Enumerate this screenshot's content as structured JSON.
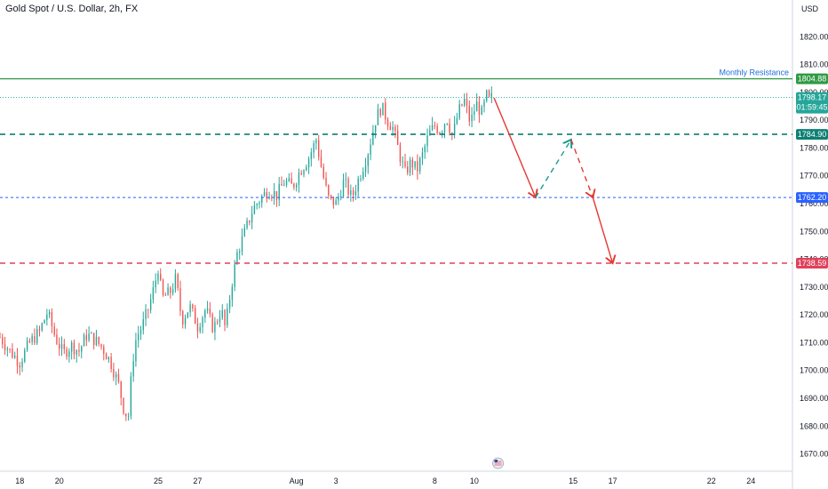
{
  "header": {
    "title": "Gold Spot / U.S. Dollar, 2h, FX",
    "currency": "USD"
  },
  "colors": {
    "up": "#26a69a",
    "down": "#ef5350",
    "resistance": "#2e9a43",
    "support_teal": "#0e7f75",
    "support_blue": "#2962ff",
    "support_red": "#e0415a",
    "arrow_red": "#e53935",
    "arrow_teal": "#1a9a8a"
  },
  "chart_data": {
    "type": "candlestick",
    "title": "Gold Spot / U.S. Dollar, 2h, FX",
    "ylabel": "USD",
    "ylim": [
      1667,
      1830
    ],
    "y_ticks": [
      1670,
      1680,
      1690,
      1700,
      1710,
      1720,
      1730,
      1740,
      1750,
      1760,
      1770,
      1780,
      1790,
      1800,
      1810,
      1820
    ],
    "x_ticks": [
      {
        "label": "18",
        "day": 18
      },
      {
        "label": "20",
        "day": 20
      },
      {
        "label": "25",
        "day": 25
      },
      {
        "label": "27",
        "day": 27
      },
      {
        "label": "Aug",
        "day": 32
      },
      {
        "label": "3",
        "day": 34
      },
      {
        "label": "8",
        "day": 39
      },
      {
        "label": "10",
        "day": 41
      },
      {
        "label": "15",
        "day": 46
      },
      {
        "label": "17",
        "day": 48
      },
      {
        "label": "22",
        "day": 53
      },
      {
        "label": "24",
        "day": 55
      }
    ],
    "x_range_days": [
      17,
      57.1
    ],
    "price_path": [
      [
        17.0,
        1712
      ],
      [
        17.5,
        1707
      ],
      [
        18.0,
        1703
      ],
      [
        18.5,
        1710
      ],
      [
        19.0,
        1714
      ],
      [
        19.4,
        1721
      ],
      [
        19.8,
        1712
      ],
      [
        20.2,
        1706
      ],
      [
        20.6,
        1709
      ],
      [
        21.0,
        1707
      ],
      [
        21.4,
        1713
      ],
      [
        21.8,
        1711
      ],
      [
        22.2,
        1708
      ],
      [
        22.6,
        1703
      ],
      [
        23.0,
        1695
      ],
      [
        23.3,
        1685
      ],
      [
        23.5,
        1684
      ],
      [
        23.7,
        1703
      ],
      [
        23.9,
        1712
      ],
      [
        24.2,
        1716
      ],
      [
        24.5,
        1722
      ],
      [
        24.8,
        1730
      ],
      [
        25.0,
        1737
      ],
      [
        25.2,
        1726
      ],
      [
        25.6,
        1728
      ],
      [
        25.9,
        1733
      ],
      [
        26.2,
        1718
      ],
      [
        26.6,
        1723
      ],
      [
        27.0,
        1716
      ],
      [
        27.4,
        1722
      ],
      [
        27.8,
        1715
      ],
      [
        28.2,
        1722
      ],
      [
        28.4,
        1715
      ],
      [
        28.7,
        1730
      ],
      [
        29.0,
        1742
      ],
      [
        29.4,
        1750
      ],
      [
        29.8,
        1758
      ],
      [
        30.2,
        1762
      ],
      [
        30.6,
        1765
      ],
      [
        31.0,
        1763
      ],
      [
        31.4,
        1768
      ],
      [
        31.8,
        1766
      ],
      [
        32.2,
        1772
      ],
      [
        32.6,
        1776
      ],
      [
        33.0,
        1783
      ],
      [
        33.2,
        1775
      ],
      [
        33.6,
        1762
      ],
      [
        34.0,
        1760
      ],
      [
        34.4,
        1768
      ],
      [
        34.8,
        1762
      ],
      [
        35.2,
        1770
      ],
      [
        35.6,
        1778
      ],
      [
        36.0,
        1790
      ],
      [
        36.3,
        1795
      ],
      [
        36.6,
        1790
      ],
      [
        36.9,
        1787
      ],
      [
        37.2,
        1778
      ],
      [
        37.5,
        1771
      ],
      [
        37.8,
        1775
      ],
      [
        38.1,
        1772
      ],
      [
        38.4,
        1778
      ],
      [
        38.7,
        1785
      ],
      [
        39.0,
        1788
      ],
      [
        39.3,
        1786
      ],
      [
        39.6,
        1791
      ],
      [
        39.9,
        1784
      ],
      [
        40.2,
        1793
      ],
      [
        40.5,
        1797
      ],
      [
        40.8,
        1789
      ],
      [
        41.1,
        1796
      ],
      [
        41.4,
        1792
      ],
      [
        41.6,
        1799
      ],
      [
        41.75,
        1797
      ],
      [
        41.9,
        1798.17
      ]
    ],
    "projection": [
      [
        42.0,
        1798
      ],
      [
        44.1,
        1762.2
      ],
      [
        45.9,
        1783
      ],
      [
        47.0,
        1762.2
      ],
      [
        48.0,
        1738.59
      ]
    ],
    "levels": [
      {
        "name": "Monthly Resistance",
        "value": 1804.88,
        "label": "1804.88",
        "style": "solid"
      },
      {
        "name": "current",
        "value": 1798.17,
        "label": "1798.17",
        "style": "dotted"
      },
      {
        "name": "support1",
        "value": 1784.9,
        "label": "1784.90",
        "style": "dashed"
      },
      {
        "name": "support2",
        "value": 1762.2,
        "label": "1762.20",
        "style": "dashed"
      },
      {
        "name": "support3",
        "value": 1738.59,
        "label": "1738.59",
        "style": "dashed"
      }
    ],
    "annotations": [
      {
        "text": "Monthly Resistance",
        "value": 1804.88
      }
    ],
    "price_badges": {
      "current_price": "1798.17",
      "countdown": "01:59:45"
    }
  }
}
